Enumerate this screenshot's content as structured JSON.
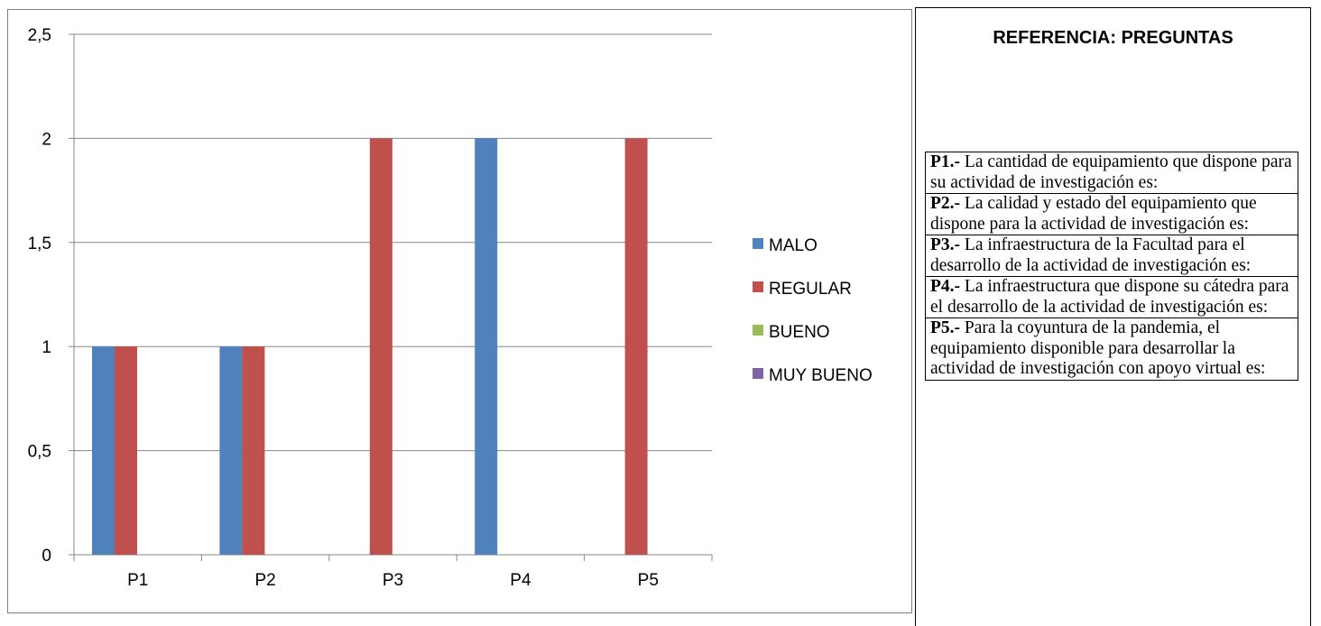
{
  "chart_data": {
    "type": "bar",
    "categories": [
      "P1",
      "P2",
      "P3",
      "P4",
      "P5"
    ],
    "series": [
      {
        "name": "MALO",
        "color": "#4f81bd",
        "values": [
          1,
          1,
          0,
          2,
          0
        ]
      },
      {
        "name": "REGULAR",
        "color": "#c0504d",
        "values": [
          1,
          1,
          2,
          0,
          2
        ]
      },
      {
        "name": "BUENO",
        "color": "#9bbb59",
        "values": [
          0,
          0,
          0,
          0,
          0
        ]
      },
      {
        "name": "MUY BUENO",
        "color": "#8064a2",
        "values": [
          0,
          0,
          0,
          0,
          0
        ]
      }
    ],
    "ylim": [
      0,
      2.5
    ],
    "yticks": [
      "0",
      "0,5",
      "1",
      "1,5",
      "2",
      "2,5"
    ],
    "grid": true,
    "legend_position": "right"
  },
  "reference": {
    "title": "REFERENCIA: PREGUNTAS",
    "questions": [
      {
        "code": "P1.-",
        "text": " La cantidad de equipamiento que dispone para su actividad de investigación es:"
      },
      {
        "code": "P2.-",
        "text": " La calidad y estado del equipamiento que dispone para la actividad de investigación  es:"
      },
      {
        "code": "P3.-",
        "text": " La infraestructura de la Facultad para el desarrollo de la actividad de investigación es:"
      },
      {
        "code": "P4.-",
        "text": " La infraestructura que dispone su cátedra  para el desarrollo de la actividad de investigación es:"
      },
      {
        "code": "P5.-",
        "text": " Para la coyuntura de la pandemia, el equipamiento disponible para desarrollar la actividad de investigación con apoyo virtual es:"
      }
    ]
  }
}
